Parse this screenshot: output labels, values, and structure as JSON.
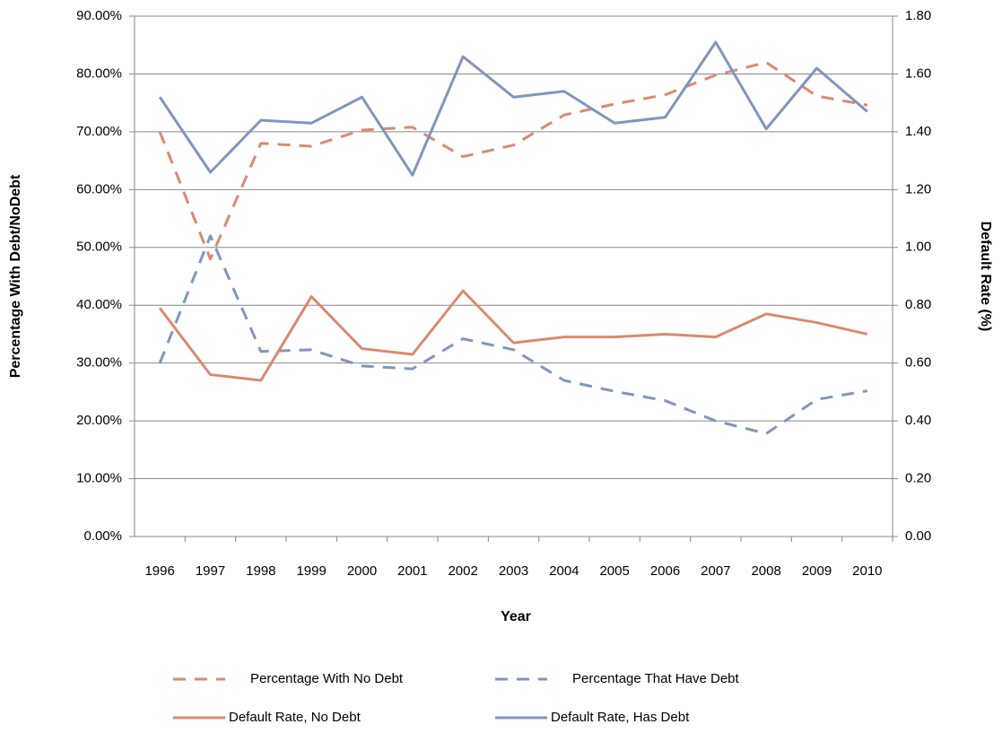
{
  "chart_data": {
    "type": "line",
    "x_label": "Year",
    "y_label": "Percentage With Debt/NoDebt",
    "y2_label": "Default Rate (%)",
    "categories": [
      "1996",
      "1997",
      "1998",
      "1999",
      "2000",
      "2001",
      "2002",
      "2003",
      "2004",
      "2005",
      "2006",
      "2007",
      "2008",
      "2009",
      "2010"
    ],
    "ylim": [
      0,
      90
    ],
    "yticks": [
      {
        "value": 0,
        "label": "0.00%"
      },
      {
        "value": 10,
        "label": "10.00%"
      },
      {
        "value": 20,
        "label": "20.00%"
      },
      {
        "value": 30,
        "label": "30.00%"
      },
      {
        "value": 40,
        "label": "40.00%"
      },
      {
        "value": 50,
        "label": "50.00%"
      },
      {
        "value": 60,
        "label": "60.00%"
      },
      {
        "value": 70,
        "label": "70.00%"
      },
      {
        "value": 80,
        "label": "80.00%"
      },
      {
        "value": 90,
        "label": "90.00%"
      }
    ],
    "y2lim": [
      0,
      1.8
    ],
    "y2ticks": [
      {
        "value": 0,
        "label": "0.00"
      },
      {
        "value": 0.2,
        "label": "0.20"
      },
      {
        "value": 0.4,
        "label": "0.40"
      },
      {
        "value": 0.6,
        "label": "0.60"
      },
      {
        "value": 0.8,
        "label": "0.80"
      },
      {
        "value": 1,
        "label": "1.00"
      },
      {
        "value": 1.2,
        "label": "1.20"
      },
      {
        "value": 1.4,
        "label": "1.40"
      },
      {
        "value": 1.6,
        "label": "1.60"
      },
      {
        "value": 1.8,
        "label": "1.80"
      }
    ],
    "grid": true,
    "series": [
      {
        "name": "Percentage With No Debt",
        "color": "#da8a6f",
        "dashed": true,
        "values": [
          70.0,
          48.0,
          68.0,
          67.5,
          70.3,
          70.8,
          65.7,
          67.7,
          72.9,
          74.8,
          76.4,
          79.8,
          82.0,
          76.2,
          74.6
        ]
      },
      {
        "name": "Percentage That Have Debt",
        "color": "#7f96bf",
        "dashed": true,
        "values": [
          30.0,
          52.0,
          32.0,
          32.3,
          29.5,
          29.0,
          34.2,
          32.3,
          27.0,
          25.1,
          23.5,
          20.0,
          17.8,
          23.7,
          25.2
        ]
      },
      {
        "name": "Default Rate, No Debt",
        "color": "#da8a6f",
        "dashed": false,
        "axis": "y2",
        "values": [
          0.79,
          0.56,
          0.54,
          0.83,
          0.65,
          0.63,
          0.85,
          0.67,
          0.69,
          0.69,
          0.7,
          0.69,
          0.77,
          0.74,
          0.7
        ]
      },
      {
        "name": "Default Rate, Has Debt",
        "color": "#7f96bf",
        "dashed": false,
        "axis": "y2",
        "values": [
          1.52,
          1.26,
          1.44,
          1.43,
          1.52,
          1.25,
          1.66,
          1.52,
          1.54,
          1.43,
          1.45,
          1.71,
          1.41,
          1.62,
          1.47
        ]
      }
    ]
  }
}
